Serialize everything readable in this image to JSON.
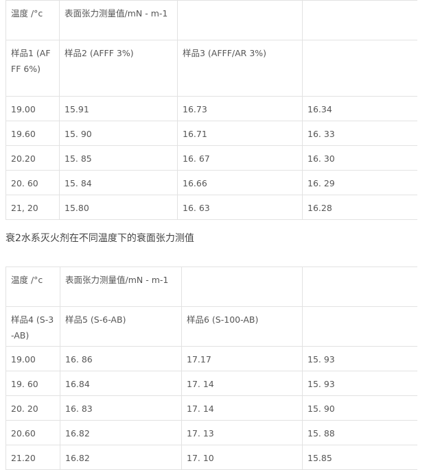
{
  "table1": {
    "header": [
      "温度 /°c",
      "表面张力测量值/mN - m-1",
      "",
      ""
    ],
    "samples": [
      "样品1 (AFFF 6%)",
      "样品2 (AFFF 3%)",
      "样品3 (AFFF/AR 3%)",
      ""
    ],
    "rows": [
      [
        "19.00",
        "15.91",
        "16.73",
        "16.34"
      ],
      [
        "19.60",
        "15. 90",
        "16.71",
        "16. 33"
      ],
      [
        "20.20",
        "15. 85",
        "16. 67",
        "16. 30"
      ],
      [
        "20. 60",
        "15. 84",
        "16.66",
        "16. 29"
      ],
      [
        "21, 20",
        "15.80",
        "16. 63",
        "16.28"
      ]
    ]
  },
  "caption": "衰2水系灭火剂在不同温度下的衰面张力测值",
  "table2": {
    "header": [
      "温度 /°c",
      "表面张力测量值/mN - m-1",
      "",
      ""
    ],
    "samples": [
      "样品4 (S-3-AB)",
      "样品5 (S-6-AB)",
      "样品6 (S-100-AB)",
      ""
    ],
    "rows": [
      [
        "19.00",
        "16. 86",
        "17.17",
        "15. 93"
      ],
      [
        "19. 60",
        "16.84",
        "17. 14",
        "15. 93"
      ],
      [
        "20. 20",
        "16. 83",
        "17. 14",
        "15. 90"
      ],
      [
        "20.60",
        "16.82",
        "17. 13",
        "15. 88"
      ],
      [
        "21.20",
        "16.82",
        "17. 10",
        "15.85"
      ]
    ]
  }
}
